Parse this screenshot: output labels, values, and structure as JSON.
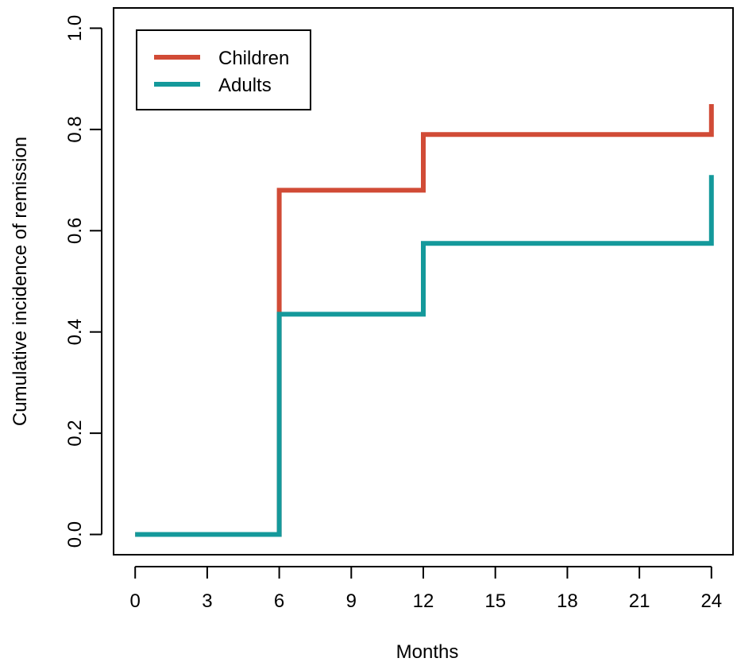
{
  "chart_data": {
    "type": "line",
    "step": true,
    "xlabel": "Months",
    "ylabel": "Cumulative incidence of remission",
    "xlim": [
      -0.9,
      24.9
    ],
    "ylim": [
      -0.04,
      1.04
    ],
    "x_ticks": [
      0,
      3,
      6,
      9,
      12,
      15,
      18,
      21,
      24
    ],
    "x_tick_labels": [
      "0",
      "3",
      "6",
      "9",
      "12",
      "15",
      "18",
      "21",
      "24"
    ],
    "y_ticks": [
      0,
      0.2,
      0.4,
      0.6,
      0.8,
      1
    ],
    "y_tick_labels": [
      "0.0",
      "0.2",
      "0.4",
      "0.6",
      "0.8",
      "1.0"
    ],
    "grid": false,
    "legend": {
      "position": "top-left",
      "boxed": true
    },
    "series": [
      {
        "name": "Children",
        "color": "#d14b36",
        "x": [
          0,
          6,
          12,
          24,
          24
        ],
        "y": [
          0,
          0.68,
          0.79,
          0.79,
          0.85
        ]
      },
      {
        "name": "Adults",
        "color": "#14999b",
        "x": [
          0,
          6,
          12,
          24,
          24
        ],
        "y": [
          0,
          0.435,
          0.575,
          0.575,
          0.71
        ]
      }
    ]
  }
}
